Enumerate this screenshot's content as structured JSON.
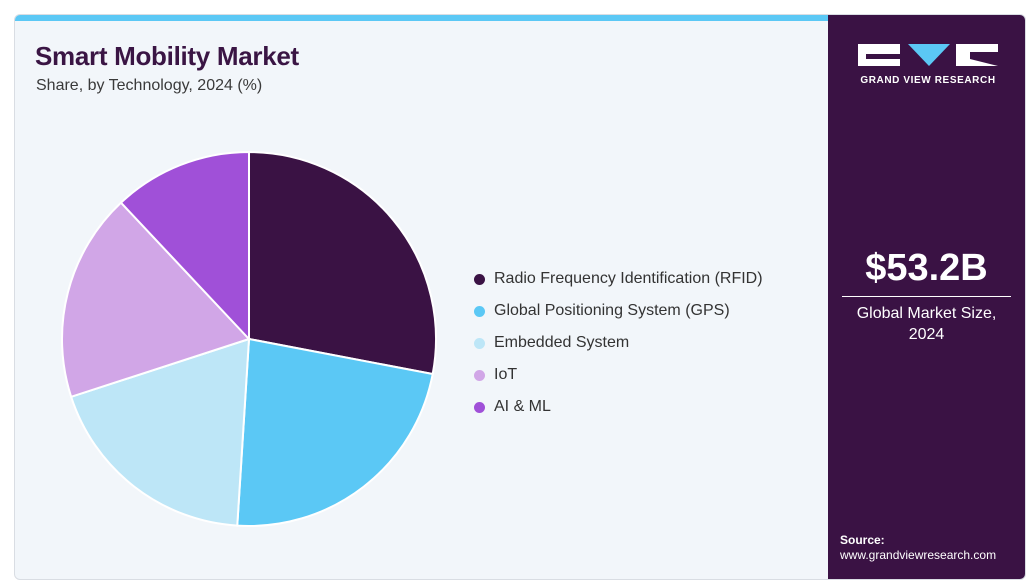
{
  "chart_data": {
    "type": "pie",
    "title": "Smart Mobility Market",
    "subtitle": "Share, by Technology, 2024 (%)",
    "categories": [
      "Radio Frequency Identification (RFID)",
      "Global Positioning System (GPS)",
      "Embedded System",
      "IoT",
      "AI & ML"
    ],
    "values": [
      28,
      23,
      19,
      18,
      12
    ],
    "colors": [
      "#3a1244",
      "#5bc8f5",
      "#bde6f7",
      "#d1a6e7",
      "#a050d8"
    ],
    "legend_position": "right"
  },
  "sidebar": {
    "logo_text": "GRAND VIEW RESEARCH",
    "market_size": "$53.2B",
    "market_label": "Global Market Size, 2024",
    "source_title": "Source:",
    "source_url": "www.grandviewresearch.com"
  }
}
